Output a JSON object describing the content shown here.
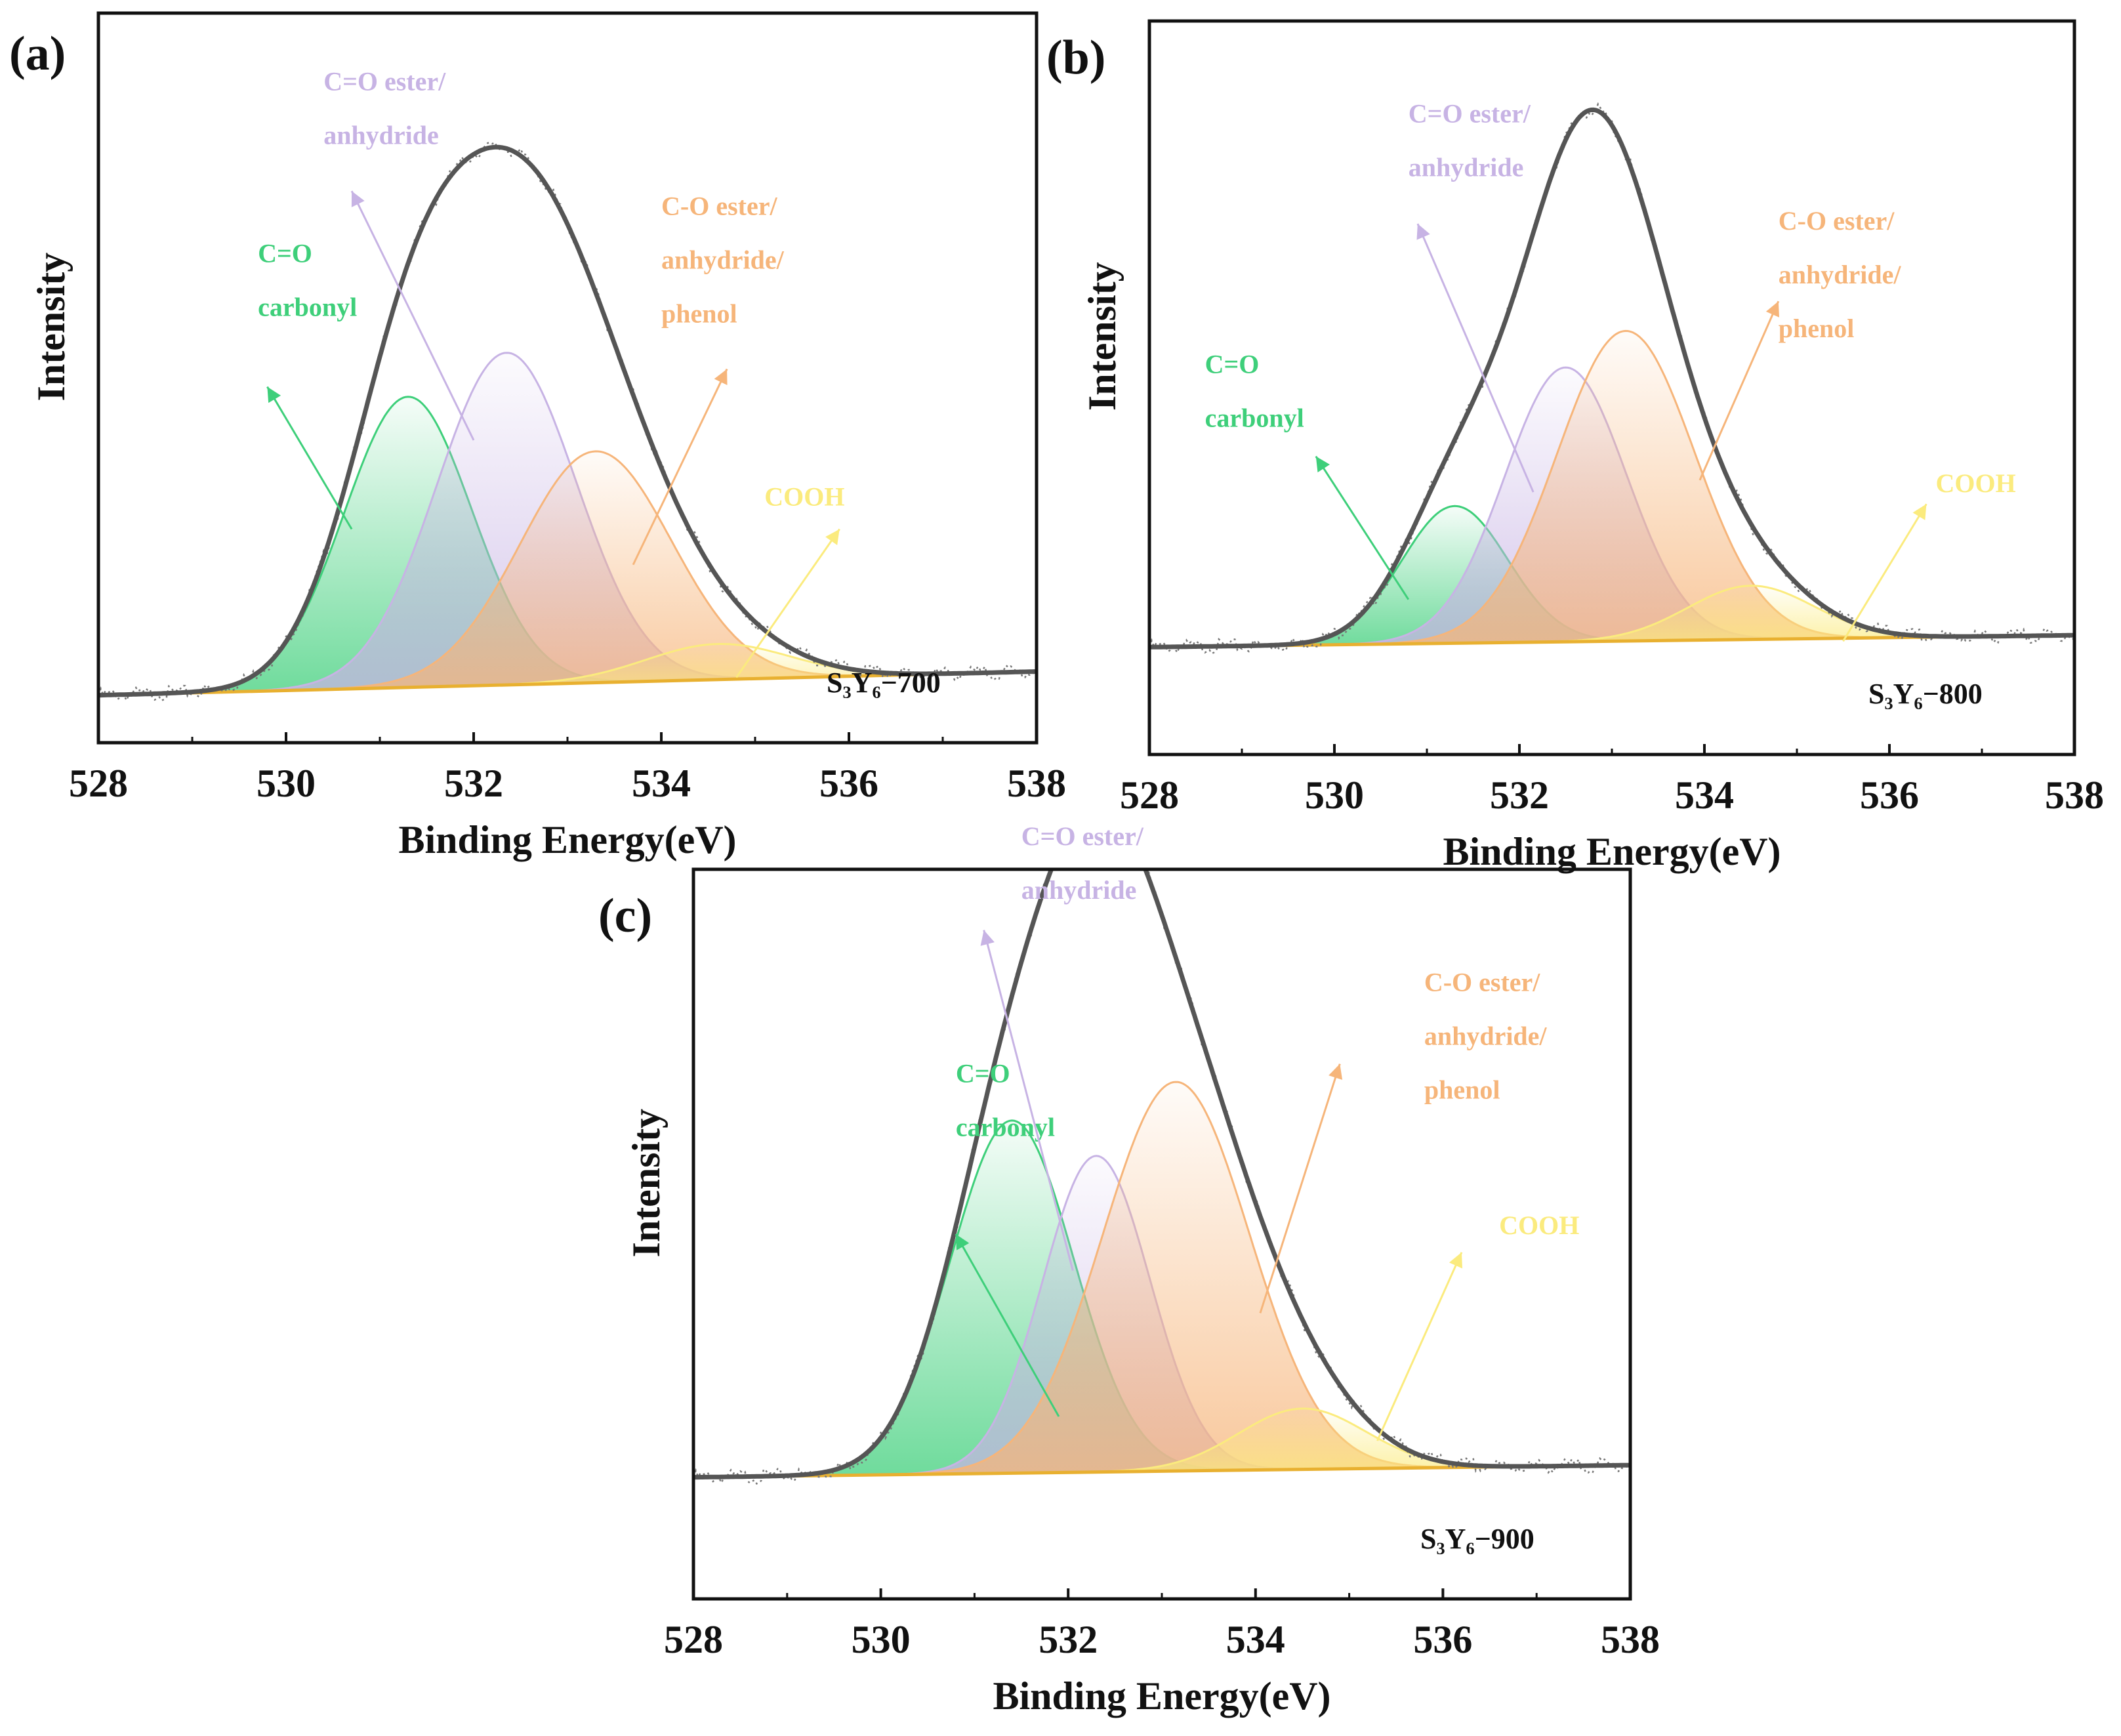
{
  "colors": {
    "carbonyl": "#3ecf7a",
    "ester": "#c7b3e4",
    "co_ester": "#f6b57a",
    "cooh": "#fbeb7e",
    "envelope": "#555555",
    "raw": "#777777",
    "baseline": "#e8b030"
  },
  "chart_data": [
    {
      "type": "line",
      "panel_label": "(a)",
      "sample": "S₃Y₆−700",
      "xlabel": "Binding Energy(eV)",
      "ylabel": "Intensity",
      "xlim": [
        528,
        538
      ],
      "ylim": [
        -0.08,
        1.15
      ],
      "xticks": [
        "528",
        "530",
        "532",
        "534",
        "536",
        "538"
      ],
      "baseline": {
        "start": 0.0,
        "end": 0.04
      },
      "peaks": [
        {
          "name": "C=O carbonyl",
          "center": 531.3,
          "height": 0.49,
          "fwhm": 1.6,
          "color_key": "carbonyl"
        },
        {
          "name": "C=O ester/anhydride",
          "center": 532.35,
          "height": 0.56,
          "fwhm": 1.75,
          "color_key": "ester"
        },
        {
          "name": "C-O ester/anhydride/phenol",
          "center": 533.3,
          "height": 0.39,
          "fwhm": 1.9,
          "color_key": "co_ester"
        },
        {
          "name": "COOH",
          "center": 534.6,
          "height": 0.06,
          "fwhm": 1.8,
          "color_key": "cooh"
        }
      ],
      "annotations": [
        {
          "lines": [
            "C=O",
            "carbonyl"
          ],
          "color_key": "carbonyl",
          "text_x": 529.7,
          "text_y": 0.73,
          "arrow_from": [
            530.7,
            0.28
          ],
          "arrow_to": [
            529.8,
            0.52
          ]
        },
        {
          "lines": [
            "C=O ester/",
            "anhydride"
          ],
          "color_key": "ester",
          "text_x": 530.4,
          "text_y": 1.02,
          "arrow_from": [
            532.0,
            0.43
          ],
          "arrow_to": [
            530.7,
            0.85
          ]
        },
        {
          "lines": [
            "C-O ester/",
            "anhydride/",
            "phenol"
          ],
          "color_key": "co_ester",
          "text_x": 534.0,
          "text_y": 0.81,
          "arrow_from": [
            533.7,
            0.22
          ],
          "arrow_to": [
            534.7,
            0.55
          ]
        },
        {
          "lines": [
            "COOH"
          ],
          "color_key": "cooh",
          "text_x": 535.1,
          "text_y": 0.32,
          "arrow_from": [
            534.8,
            0.03
          ],
          "arrow_to": [
            535.9,
            0.28
          ]
        }
      ]
    },
    {
      "type": "line",
      "panel_label": "(b)",
      "sample": "S₃Y₆−800",
      "xlabel": "Binding Energy(eV)",
      "ylabel": "Intensity",
      "xlim": [
        528,
        538
      ],
      "ylim": [
        -0.18,
        1.05
      ],
      "xticks": [
        "528",
        "530",
        "532",
        "534",
        "536",
        "538"
      ],
      "baseline": {
        "start": 0.0,
        "end": 0.02
      },
      "peaks": [
        {
          "name": "C=O carbonyl",
          "center": 531.3,
          "height": 0.23,
          "fwhm": 1.35,
          "color_key": "carbonyl"
        },
        {
          "name": "C=O ester/anhydride",
          "center": 532.5,
          "height": 0.46,
          "fwhm": 1.55,
          "color_key": "ester"
        },
        {
          "name": "C-O ester/anhydride/phenol",
          "center": 533.15,
          "height": 0.52,
          "fwhm": 1.75,
          "color_key": "co_ester"
        },
        {
          "name": "COOH",
          "center": 534.5,
          "height": 0.09,
          "fwhm": 1.6,
          "color_key": "cooh"
        }
      ],
      "annotations": [
        {
          "lines": [
            "C=O",
            "carbonyl"
          ],
          "color_key": "carbonyl",
          "text_x": 528.6,
          "text_y": 0.46,
          "arrow_from": [
            530.8,
            0.08
          ],
          "arrow_to": [
            529.8,
            0.32
          ]
        },
        {
          "lines": [
            "C=O ester/",
            "anhydride"
          ],
          "color_key": "ester",
          "text_x": 530.8,
          "text_y": 0.88,
          "arrow_from": [
            532.15,
            0.26
          ],
          "arrow_to": [
            530.9,
            0.71
          ]
        },
        {
          "lines": [
            "C-O ester/",
            "anhydride/",
            "phenol"
          ],
          "color_key": "co_ester",
          "text_x": 534.8,
          "text_y": 0.7,
          "arrow_from": [
            533.95,
            0.28
          ],
          "arrow_to": [
            534.8,
            0.58
          ]
        },
        {
          "lines": [
            "COOH"
          ],
          "color_key": "cooh",
          "text_x": 536.5,
          "text_y": 0.26,
          "arrow_from": [
            535.5,
            0.01
          ],
          "arrow_to": [
            536.4,
            0.24
          ]
        }
      ]
    },
    {
      "type": "line",
      "panel_label": "(c)",
      "sample": "S₃Y₆−900",
      "xlabel": "Binding Energy(eV)",
      "ylabel": "Intensity",
      "xlim": [
        528,
        538
      ],
      "ylim": [
        -0.2,
        1.0
      ],
      "xticks": [
        "528",
        "530",
        "532",
        "534",
        "536",
        "538"
      ],
      "baseline": {
        "start": 0.0,
        "end": 0.02
      },
      "peaks": [
        {
          "name": "C=O carbonyl",
          "center": 531.4,
          "height": 0.58,
          "fwhm": 1.55,
          "color_key": "carbonyl"
        },
        {
          "name": "C=O ester/anhydride",
          "center": 532.3,
          "height": 0.52,
          "fwhm": 1.35,
          "color_key": "ester"
        },
        {
          "name": "C-O ester/anhydride/phenol",
          "center": 533.15,
          "height": 0.64,
          "fwhm": 1.85,
          "color_key": "co_ester"
        },
        {
          "name": "COOH",
          "center": 534.5,
          "height": 0.1,
          "fwhm": 1.6,
          "color_key": "cooh"
        }
      ],
      "annotations": [
        {
          "lines": [
            "C=O",
            "carbonyl"
          ],
          "color_key": "carbonyl",
          "text_x": 530.8,
          "text_y": 0.65,
          "arrow_from": [
            531.9,
            0.1
          ],
          "arrow_to": [
            530.8,
            0.4
          ]
        },
        {
          "lines": [
            "C=O ester/",
            "anhydride"
          ],
          "color_key": "ester",
          "text_x": 531.5,
          "text_y": 1.04,
          "arrow_from": [
            532.05,
            0.34
          ],
          "arrow_to": [
            531.1,
            0.9
          ]
        },
        {
          "lines": [
            "C-O ester/",
            "anhydride/",
            "phenol"
          ],
          "color_key": "co_ester",
          "text_x": 535.8,
          "text_y": 0.8,
          "arrow_from": [
            534.05,
            0.27
          ],
          "arrow_to": [
            534.9,
            0.68
          ]
        },
        {
          "lines": [
            "COOH"
          ],
          "color_key": "cooh",
          "text_x": 536.6,
          "text_y": 0.4,
          "arrow_from": [
            535.3,
            0.06
          ],
          "arrow_to": [
            536.2,
            0.37
          ]
        }
      ]
    }
  ]
}
